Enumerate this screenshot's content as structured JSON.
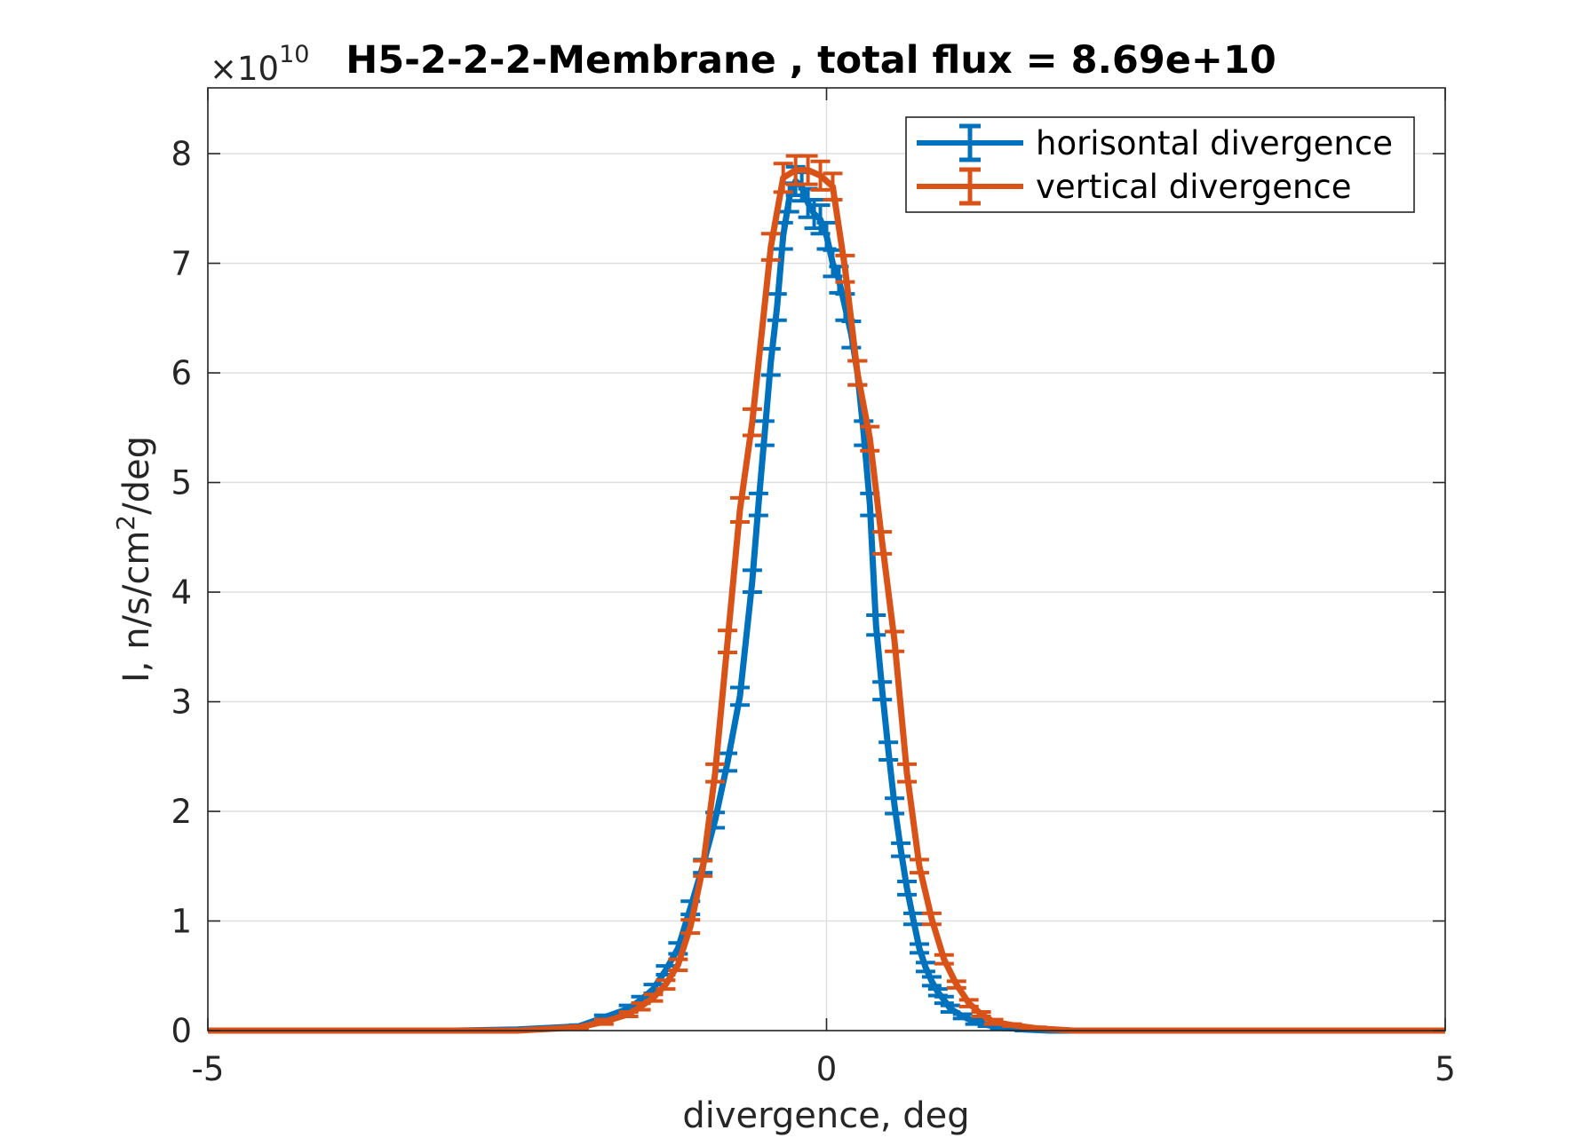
{
  "chart_data": {
    "type": "line",
    "title": "H5-2-2-2-Membrane , total flux =  8.69e+10",
    "xlabel": "divergence, deg",
    "ylabel": "I, n/s/cm²/deg",
    "ylabel_parts": {
      "base": "I, n/s/cm",
      "sup": "2",
      "tail": "/deg"
    },
    "y_exponent": {
      "prefix": "×10",
      "power": "10"
    },
    "xlim": [
      -5,
      5
    ],
    "ylim": [
      0,
      8.6
    ],
    "xticks": [
      -5,
      0,
      5
    ],
    "xtick_labels": [
      "-5",
      "0",
      "5"
    ],
    "yticks": [
      0,
      1,
      2,
      3,
      4,
      5,
      6,
      7,
      8
    ],
    "ytick_labels": [
      "0",
      "1",
      "2",
      "3",
      "4",
      "5",
      "6",
      "7",
      "8"
    ],
    "grid": true,
    "legend_position": "top-right",
    "y_unit_multiplier": 10000000000.0,
    "series": [
      {
        "name": "horisontal divergence",
        "color": "#0072BD",
        "x": [
          -5.0,
          -4.0,
          -3.0,
          -2.5,
          -2.0,
          -1.8,
          -1.6,
          -1.5,
          -1.4,
          -1.3,
          -1.2,
          -1.1,
          -1.0,
          -0.9,
          -0.8,
          -0.7,
          -0.6,
          -0.55,
          -0.5,
          -0.45,
          -0.4,
          -0.35,
          -0.3,
          -0.25,
          -0.2,
          -0.15,
          -0.1,
          -0.05,
          0.0,
          0.05,
          0.1,
          0.15,
          0.2,
          0.25,
          0.3,
          0.35,
          0.4,
          0.45,
          0.5,
          0.55,
          0.6,
          0.65,
          0.7,
          0.75,
          0.8,
          0.85,
          0.9,
          0.95,
          1.0,
          1.1,
          1.2,
          1.3,
          1.4,
          1.5,
          1.6,
          1.8,
          2.0,
          2.5,
          3.0,
          4.0,
          5.0
        ],
        "y": [
          0,
          0,
          0,
          0.01,
          0.04,
          0.12,
          0.2,
          0.28,
          0.38,
          0.55,
          0.75,
          1.12,
          1.5,
          1.92,
          2.45,
          3.05,
          4.1,
          4.8,
          5.45,
          6.1,
          6.6,
          7.25,
          7.6,
          7.75,
          7.7,
          7.55,
          7.45,
          7.4,
          7.25,
          7.0,
          6.85,
          6.6,
          6.35,
          6.0,
          5.45,
          4.8,
          3.7,
          3.1,
          2.55,
          2.05,
          1.65,
          1.3,
          1.02,
          0.75,
          0.58,
          0.45,
          0.35,
          0.28,
          0.2,
          0.13,
          0.08,
          0.05,
          0.03,
          0.02,
          0.01,
          0.0,
          0.0,
          0,
          0,
          0,
          0
        ],
        "err": [
          0,
          0,
          0,
          0.01,
          0.01,
          0.02,
          0.03,
          0.03,
          0.04,
          0.04,
          0.05,
          0.06,
          0.06,
          0.07,
          0.08,
          0.08,
          0.1,
          0.1,
          0.11,
          0.12,
          0.12,
          0.12,
          0.13,
          0.13,
          0.13,
          0.13,
          0.13,
          0.13,
          0.12,
          0.12,
          0.12,
          0.12,
          0.12,
          0.11,
          0.11,
          0.1,
          0.09,
          0.08,
          0.08,
          0.07,
          0.06,
          0.06,
          0.05,
          0.04,
          0.04,
          0.04,
          0.03,
          0.03,
          0.03,
          0.02,
          0.02,
          0.01,
          0.01,
          0.01,
          0.01,
          0,
          0,
          0,
          0,
          0,
          0
        ]
      },
      {
        "name": "vertical divergence",
        "color": "#D95319",
        "x": [
          -5.0,
          -4.0,
          -3.0,
          -2.5,
          -2.0,
          -1.8,
          -1.6,
          -1.5,
          -1.4,
          -1.3,
          -1.2,
          -1.1,
          -1.0,
          -0.9,
          -0.8,
          -0.7,
          -0.6,
          -0.45,
          -0.35,
          -0.25,
          -0.15,
          -0.05,
          0.05,
          0.15,
          0.25,
          0.35,
          0.45,
          0.55,
          0.65,
          0.75,
          0.85,
          0.95,
          1.05,
          1.15,
          1.25,
          1.35,
          1.5,
          1.7,
          2.0,
          2.5,
          3.0,
          4.0,
          5.0
        ],
        "y": [
          0,
          0,
          0,
          0.0,
          0.03,
          0.08,
          0.15,
          0.22,
          0.3,
          0.42,
          0.6,
          0.95,
          1.48,
          2.35,
          3.55,
          4.75,
          5.55,
          7.15,
          7.78,
          7.85,
          7.85,
          7.8,
          7.7,
          6.95,
          6.0,
          5.4,
          4.45,
          3.55,
          2.35,
          1.5,
          1.02,
          0.65,
          0.42,
          0.25,
          0.15,
          0.08,
          0.05,
          0.02,
          0.0,
          0,
          0,
          0,
          0
        ],
        "err": [
          0,
          0,
          0,
          0,
          0.01,
          0.02,
          0.02,
          0.03,
          0.03,
          0.04,
          0.05,
          0.06,
          0.07,
          0.08,
          0.1,
          0.11,
          0.12,
          0.12,
          0.13,
          0.13,
          0.13,
          0.13,
          0.12,
          0.12,
          0.11,
          0.11,
          0.1,
          0.09,
          0.08,
          0.06,
          0.05,
          0.04,
          0.03,
          0.03,
          0.02,
          0.02,
          0.01,
          0.01,
          0,
          0,
          0,
          0,
          0
        ]
      }
    ]
  }
}
